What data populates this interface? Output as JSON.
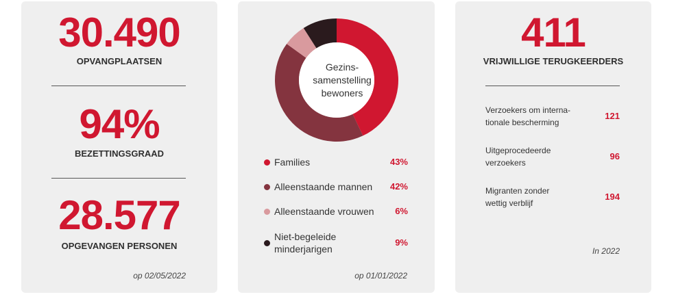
{
  "panel1": {
    "stats": [
      {
        "value": "30.490",
        "label": "OPVANGPLAATSEN"
      },
      {
        "value": "94%",
        "label": "BEZETTINGSGRAAD"
      },
      {
        "value": "28.577",
        "label": "OPGEVANGEN PERSONEN"
      }
    ],
    "note": "op 02/05/2022"
  },
  "panel2": {
    "center_line1": "Gezins-",
    "center_line2": "samenstelling",
    "center_line3": "bewoners",
    "note": "op 01/01/2022"
  },
  "chart_data": {
    "type": "pie",
    "title": "Gezinssamenstelling bewoners",
    "categories": [
      "Families",
      "Alleenstaande mannen",
      "Alleenstaande vrouwen",
      "Niet-begeleide minderjarigen"
    ],
    "category_lines": [
      [
        "Families"
      ],
      [
        "Alleenstaande mannen"
      ],
      [
        "Alleenstaande vrouwen"
      ],
      [
        "Niet-begeleide",
        "minderjarigen"
      ]
    ],
    "values": [
      43,
      42,
      6,
      9
    ],
    "value_labels": [
      "43%",
      "42%",
      "6%",
      "9%"
    ],
    "colors": [
      "#d01730",
      "#84343f",
      "#d99a9e",
      "#2a1a1d"
    ]
  },
  "panel3": {
    "value": "411",
    "label": "VRIJWILLIGE TERUGKEERDERS",
    "rows": [
      {
        "line1": "Verzoekers om interna-",
        "line2": "tionale bescherming",
        "value": "121"
      },
      {
        "line1": "Uitgeprocedeerde",
        "line2": "verzoekers",
        "value": "96"
      },
      {
        "line1": "Migranten zonder",
        "line2": "wettig verblijf",
        "value": "194"
      }
    ],
    "note": "In 2022"
  }
}
